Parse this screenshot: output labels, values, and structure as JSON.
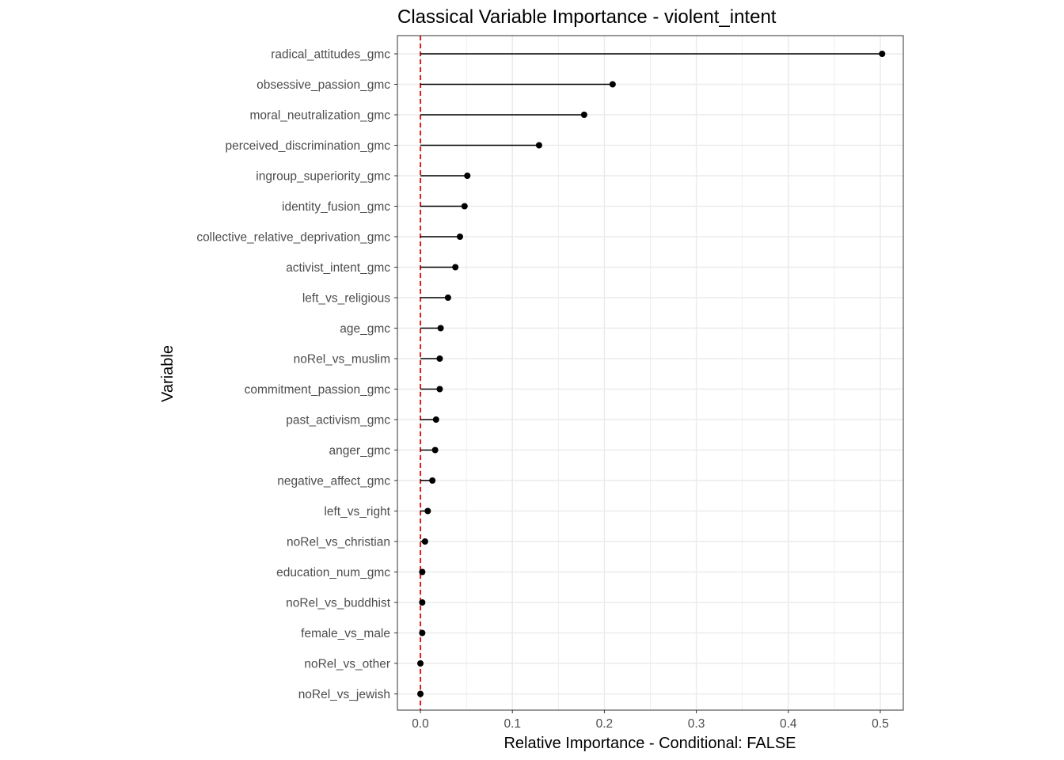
{
  "chart_data": {
    "type": "lollipop",
    "title": "Classical Variable Importance - violent_intent",
    "xlabel": "Relative Importance - Conditional: FALSE",
    "ylabel": "Variable",
    "xlim": [
      -0.025,
      0.525
    ],
    "x_ticks": [
      "0.0",
      "0.1",
      "0.2",
      "0.3",
      "0.4",
      "0.5"
    ],
    "x_tick_values": [
      0.0,
      0.1,
      0.2,
      0.3,
      0.4,
      0.5
    ],
    "reference_line": {
      "x": 0,
      "color": "#e41a1c",
      "style": "dashed"
    },
    "grid": true,
    "categories": [
      "radical_attitudes_gmc",
      "obsessive_passion_gmc",
      "moral_neutralization_gmc",
      "perceived_discrimination_gmc",
      "ingroup_superiority_gmc",
      "identity_fusion_gmc",
      "collective_relative_deprivation_gmc",
      "activist_intent_gmc",
      "left_vs_religious",
      "age_gmc",
      "noRel_vs_muslim",
      "commitment_passion_gmc",
      "past_activism_gmc",
      "anger_gmc",
      "negative_affect_gmc",
      "left_vs_right",
      "noRel_vs_christian",
      "education_num_gmc",
      "noRel_vs_buddhist",
      "female_vs_male",
      "noRel_vs_other",
      "noRel_vs_jewish"
    ],
    "values": [
      0.502,
      0.209,
      0.178,
      0.129,
      0.051,
      0.048,
      0.043,
      0.038,
      0.03,
      0.022,
      0.021,
      0.021,
      0.017,
      0.016,
      0.013,
      0.008,
      0.005,
      0.002,
      0.002,
      0.002,
      0.0,
      0.0
    ],
    "colors": {
      "point": "#000000",
      "segment": "#000000",
      "reference": "#e41a1c",
      "grid": "#ebebeb",
      "panel_border": "#333333"
    }
  }
}
